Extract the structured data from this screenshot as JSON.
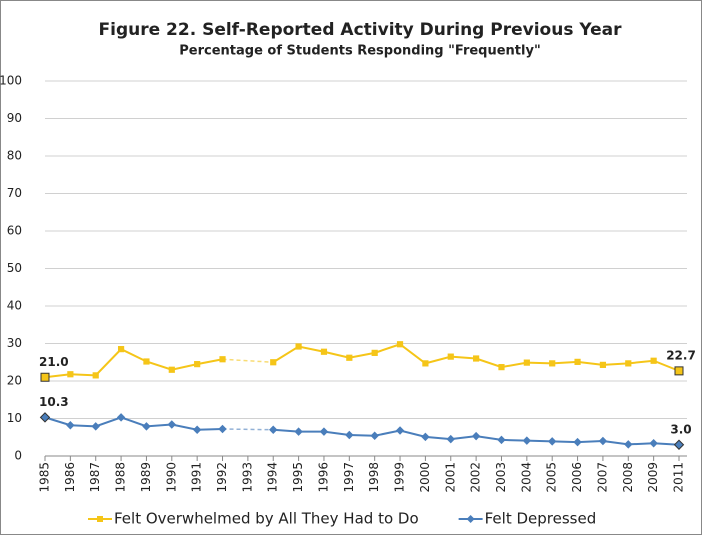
{
  "chart_data": {
    "type": "line",
    "title": "Figure 22.  Self-Reported Activity During Previous Year",
    "subtitle": "Percentage of Students Responding \"Frequently\"",
    "categories": [
      "1985",
      "1986",
      "1987",
      "1988",
      "1989",
      "1990",
      "1991",
      "1992",
      "1993",
      "1994",
      "1995",
      "1996",
      "1997",
      "1998",
      "1999",
      "2000",
      "2001",
      "2002",
      "2003",
      "2004",
      "2005",
      "2006",
      "2007",
      "2008",
      "2009",
      "2011"
    ],
    "series": [
      {
        "name": "Felt Overwhelmed by All They Had to Do",
        "color": "#f5c518",
        "marker": "square",
        "values": [
          21.0,
          21.8,
          21.5,
          28.5,
          25.2,
          23.0,
          24.5,
          25.8,
          null,
          25.0,
          29.2,
          27.8,
          26.2,
          27.5,
          29.8,
          24.7,
          26.5,
          26.0,
          23.7,
          24.9,
          24.7,
          25.1,
          24.3,
          24.7,
          25.4,
          22.7
        ],
        "value_labels": [
          "21.0",
          null,
          null,
          null,
          null,
          null,
          null,
          null,
          null,
          null,
          null,
          null,
          null,
          null,
          null,
          null,
          null,
          null,
          null,
          null,
          null,
          null,
          null,
          null,
          null,
          "22.7"
        ]
      },
      {
        "name": "Felt Depressed",
        "color": "#4a7ebb",
        "marker": "diamond",
        "values": [
          10.3,
          8.2,
          7.9,
          10.3,
          7.9,
          8.4,
          7.0,
          7.2,
          null,
          7.0,
          6.5,
          6.5,
          5.6,
          5.4,
          6.8,
          5.1,
          4.5,
          5.3,
          4.3,
          4.1,
          3.9,
          3.7,
          4.0,
          3.1,
          3.4,
          3.0
        ],
        "value_labels": [
          "10.3",
          null,
          null,
          null,
          null,
          null,
          null,
          null,
          null,
          null,
          null,
          null,
          null,
          null,
          null,
          null,
          null,
          null,
          null,
          null,
          null,
          null,
          null,
          null,
          null,
          "3.0"
        ]
      }
    ],
    "ylim": [
      0,
      100
    ],
    "yticks": [
      0,
      10,
      20,
      30,
      40,
      50,
      60,
      70,
      80,
      90,
      100
    ],
    "grid": true,
    "legend": "bottom"
  }
}
